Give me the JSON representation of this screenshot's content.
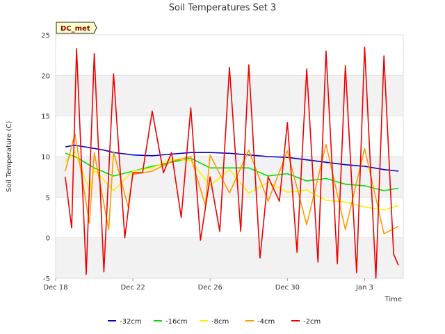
{
  "chart_data": {
    "type": "line",
    "title": "Soil Temperatures Set 3",
    "xlabel": "Time",
    "ylabel": "Soil Temperature (C)",
    "site_label": "DC_met",
    "ylim": [
      -5,
      25
    ],
    "yticks": [
      -5,
      0,
      5,
      10,
      15,
      20,
      25
    ],
    "xlim": [
      "2016-12-18",
      "2017-01-05"
    ],
    "xtick_labels": [
      {
        "label": "Dec 18",
        "date": "2016-12-18"
      },
      {
        "label": "Dec 22",
        "date": "2016-12-22"
      },
      {
        "label": "Dec 26",
        "date": "2016-12-26"
      },
      {
        "label": "Dec 30",
        "date": "2016-12-30"
      },
      {
        "label": "Jan 3",
        "date": "2017-01-03"
      }
    ],
    "background_bands": "alternating light grey",
    "legend_position": "bottom-center",
    "series": [
      {
        "name": "-32cm",
        "color": "#0000cc",
        "x": [
          "2016-12-18 12:00",
          "2016-12-19",
          "2016-12-19 12:00",
          "2016-12-20",
          "2016-12-20 12:00",
          "2016-12-21",
          "2016-12-22",
          "2016-12-23",
          "2016-12-24",
          "2016-12-25",
          "2016-12-26",
          "2016-12-27",
          "2016-12-28",
          "2016-12-29",
          "2016-12-30",
          "2016-12-31",
          "2017-01-01",
          "2017-01-02",
          "2017-01-03",
          "2017-01-04",
          "2017-01-04 18:00"
        ],
        "y": [
          11.2,
          11.4,
          11.2,
          11.0,
          10.8,
          10.5,
          10.2,
          10.1,
          10.3,
          10.5,
          10.5,
          10.4,
          10.2,
          10.0,
          9.9,
          9.6,
          9.3,
          9.0,
          8.8,
          8.4,
          8.2
        ]
      },
      {
        "name": "-16cm",
        "color": "#00dd00",
        "x": [
          "2016-12-18 12:00",
          "2016-12-19",
          "2016-12-20",
          "2016-12-21",
          "2016-12-22",
          "2016-12-23",
          "2016-12-24",
          "2016-12-25",
          "2016-12-26",
          "2016-12-27",
          "2016-12-28",
          "2016-12-29",
          "2016-12-30",
          "2016-12-31",
          "2017-01-01",
          "2017-01-02",
          "2017-01-03",
          "2017-01-04",
          "2017-01-04 18:00"
        ],
        "y": [
          10.4,
          10.0,
          8.6,
          7.6,
          8.2,
          8.8,
          9.3,
          9.8,
          8.6,
          8.6,
          8.6,
          7.6,
          7.9,
          7.0,
          7.3,
          6.6,
          6.4,
          5.8,
          6.1
        ]
      },
      {
        "name": "-8cm",
        "color": "#ffee00",
        "x": [
          "2016-12-18 12:00",
          "2016-12-19",
          "2016-12-19 18:00",
          "2016-12-20",
          "2016-12-21",
          "2016-12-22",
          "2016-12-23",
          "2016-12-24",
          "2016-12-25",
          "2016-12-26",
          "2016-12-27",
          "2016-12-28",
          "2016-12-29",
          "2016-12-30",
          "2016-12-31",
          "2017-01-01",
          "2017-01-02",
          "2017-01-03",
          "2017-01-04",
          "2017-01-04 18:00"
        ],
        "y": [
          9.4,
          10.6,
          5.8,
          8.4,
          5.8,
          8.2,
          8.6,
          9.7,
          9.5,
          6.4,
          8.4,
          5.5,
          6.8,
          5.6,
          5.9,
          4.6,
          4.4,
          3.8,
          3.4,
          4.0
        ]
      },
      {
        "name": "-4cm",
        "color": "#ff9900",
        "x": [
          "2016-12-18 12:00",
          "2016-12-19",
          "2016-12-19 18:00",
          "2016-12-20",
          "2016-12-20 18:00",
          "2016-12-21",
          "2016-12-21 18:00",
          "2016-12-22",
          "2016-12-23",
          "2016-12-24",
          "2016-12-25",
          "2016-12-25 18:00",
          "2016-12-26",
          "2016-12-27",
          "2016-12-28",
          "2016-12-29",
          "2016-12-30",
          "2016-12-31",
          "2017-01-01",
          "2017-01-02",
          "2017-01-03",
          "2017-01-04",
          "2017-01-04 18:00"
        ],
        "y": [
          8.2,
          12.8,
          1.8,
          10.5,
          1.0,
          10.6,
          3.8,
          7.8,
          8.2,
          9.4,
          10.0,
          4.0,
          10.2,
          5.5,
          10.8,
          4.5,
          10.7,
          1.6,
          11.5,
          1.0,
          11.0,
          0.5,
          1.4
        ]
      },
      {
        "name": "-2cm",
        "color": "#ee0000",
        "x": [
          "2016-12-18 12:00",
          "2016-12-18 20:00",
          "2016-12-19 02:00",
          "2016-12-19 14:00",
          "2016-12-20",
          "2016-12-20 12:00",
          "2016-12-21",
          "2016-12-21 14:00",
          "2016-12-22",
          "2016-12-22 12:00",
          "2016-12-23",
          "2016-12-23 14:00",
          "2016-12-24",
          "2016-12-24 12:00",
          "2016-12-25",
          "2016-12-25 12:00",
          "2016-12-26",
          "2016-12-26 12:00",
          "2016-12-27",
          "2016-12-27 14:00",
          "2016-12-28",
          "2016-12-28 14:00",
          "2016-12-29",
          "2016-12-29 14:00",
          "2016-12-30",
          "2016-12-30 12:00",
          "2016-12-31",
          "2016-12-31 14:00",
          "2017-01-01",
          "2017-01-01 14:00",
          "2017-01-02",
          "2017-01-02 14:00",
          "2017-01-03",
          "2017-01-03 14:00",
          "2017-01-04",
          "2017-01-04 12:00",
          "2017-01-04 18:00"
        ],
        "y": [
          7.5,
          1.2,
          23.3,
          -4.5,
          22.7,
          -4.2,
          20.2,
          0.0,
          8.0,
          8.0,
          15.6,
          8.0,
          10.5,
          2.5,
          16.0,
          -0.3,
          7.5,
          0.8,
          21.0,
          0.8,
          21.3,
          -2.5,
          7.5,
          4.5,
          14.2,
          -1.8,
          20.8,
          -3.0,
          23.0,
          -3.2,
          21.2,
          -4.3,
          23.5,
          -5.0,
          22.4,
          -2.0,
          -3.4
        ]
      }
    ]
  }
}
